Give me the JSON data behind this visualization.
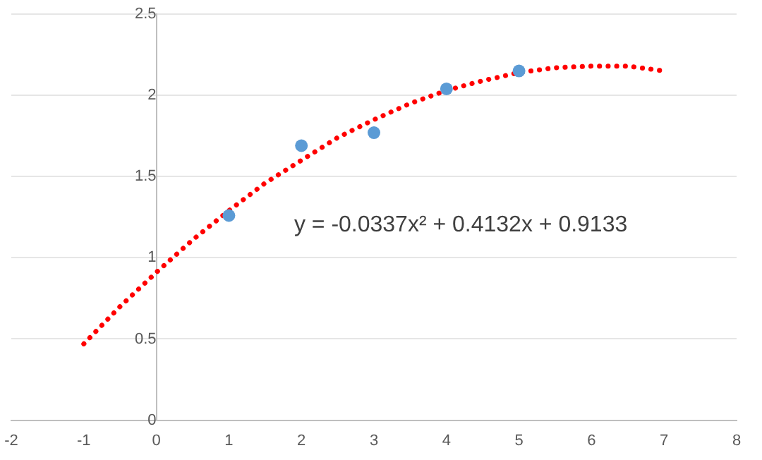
{
  "chart_data": {
    "type": "scatter",
    "xlim": [
      -2,
      8
    ],
    "xticks": [
      -2,
      -1,
      0,
      1,
      2,
      3,
      4,
      5,
      6,
      7,
      8
    ],
    "ylim": [
      0,
      2.5
    ],
    "yticks": [
      0,
      0.5,
      1,
      1.5,
      2,
      2.5
    ],
    "grid": "y",
    "legend": false,
    "series": [
      {
        "type": "scatter",
        "color": "#5b9bd5",
        "marker": "circle",
        "x": [
          1,
          2,
          3,
          4,
          5
        ],
        "values": [
          1.26,
          1.69,
          1.77,
          2.04,
          2.15
        ]
      },
      {
        "type": "line",
        "color": "#ff0000",
        "marker": "none",
        "line_style": "dotted",
        "x": [
          -1,
          -0.5,
          0,
          0.5,
          1,
          1.5,
          2,
          2.5,
          3,
          3.5,
          4,
          4.5,
          5,
          5.5,
          6,
          6.5,
          7
        ],
        "values": [
          0.47,
          0.7,
          0.91,
          1.11,
          1.29,
          1.46,
          1.6,
          1.74,
          1.85,
          1.95,
          2.03,
          2.09,
          2.14,
          2.17,
          2.18,
          2.18,
          2.15
        ]
      }
    ],
    "annotations": [
      "y = -0.0337x² + 0.4132x + 0.9133"
    ]
  }
}
